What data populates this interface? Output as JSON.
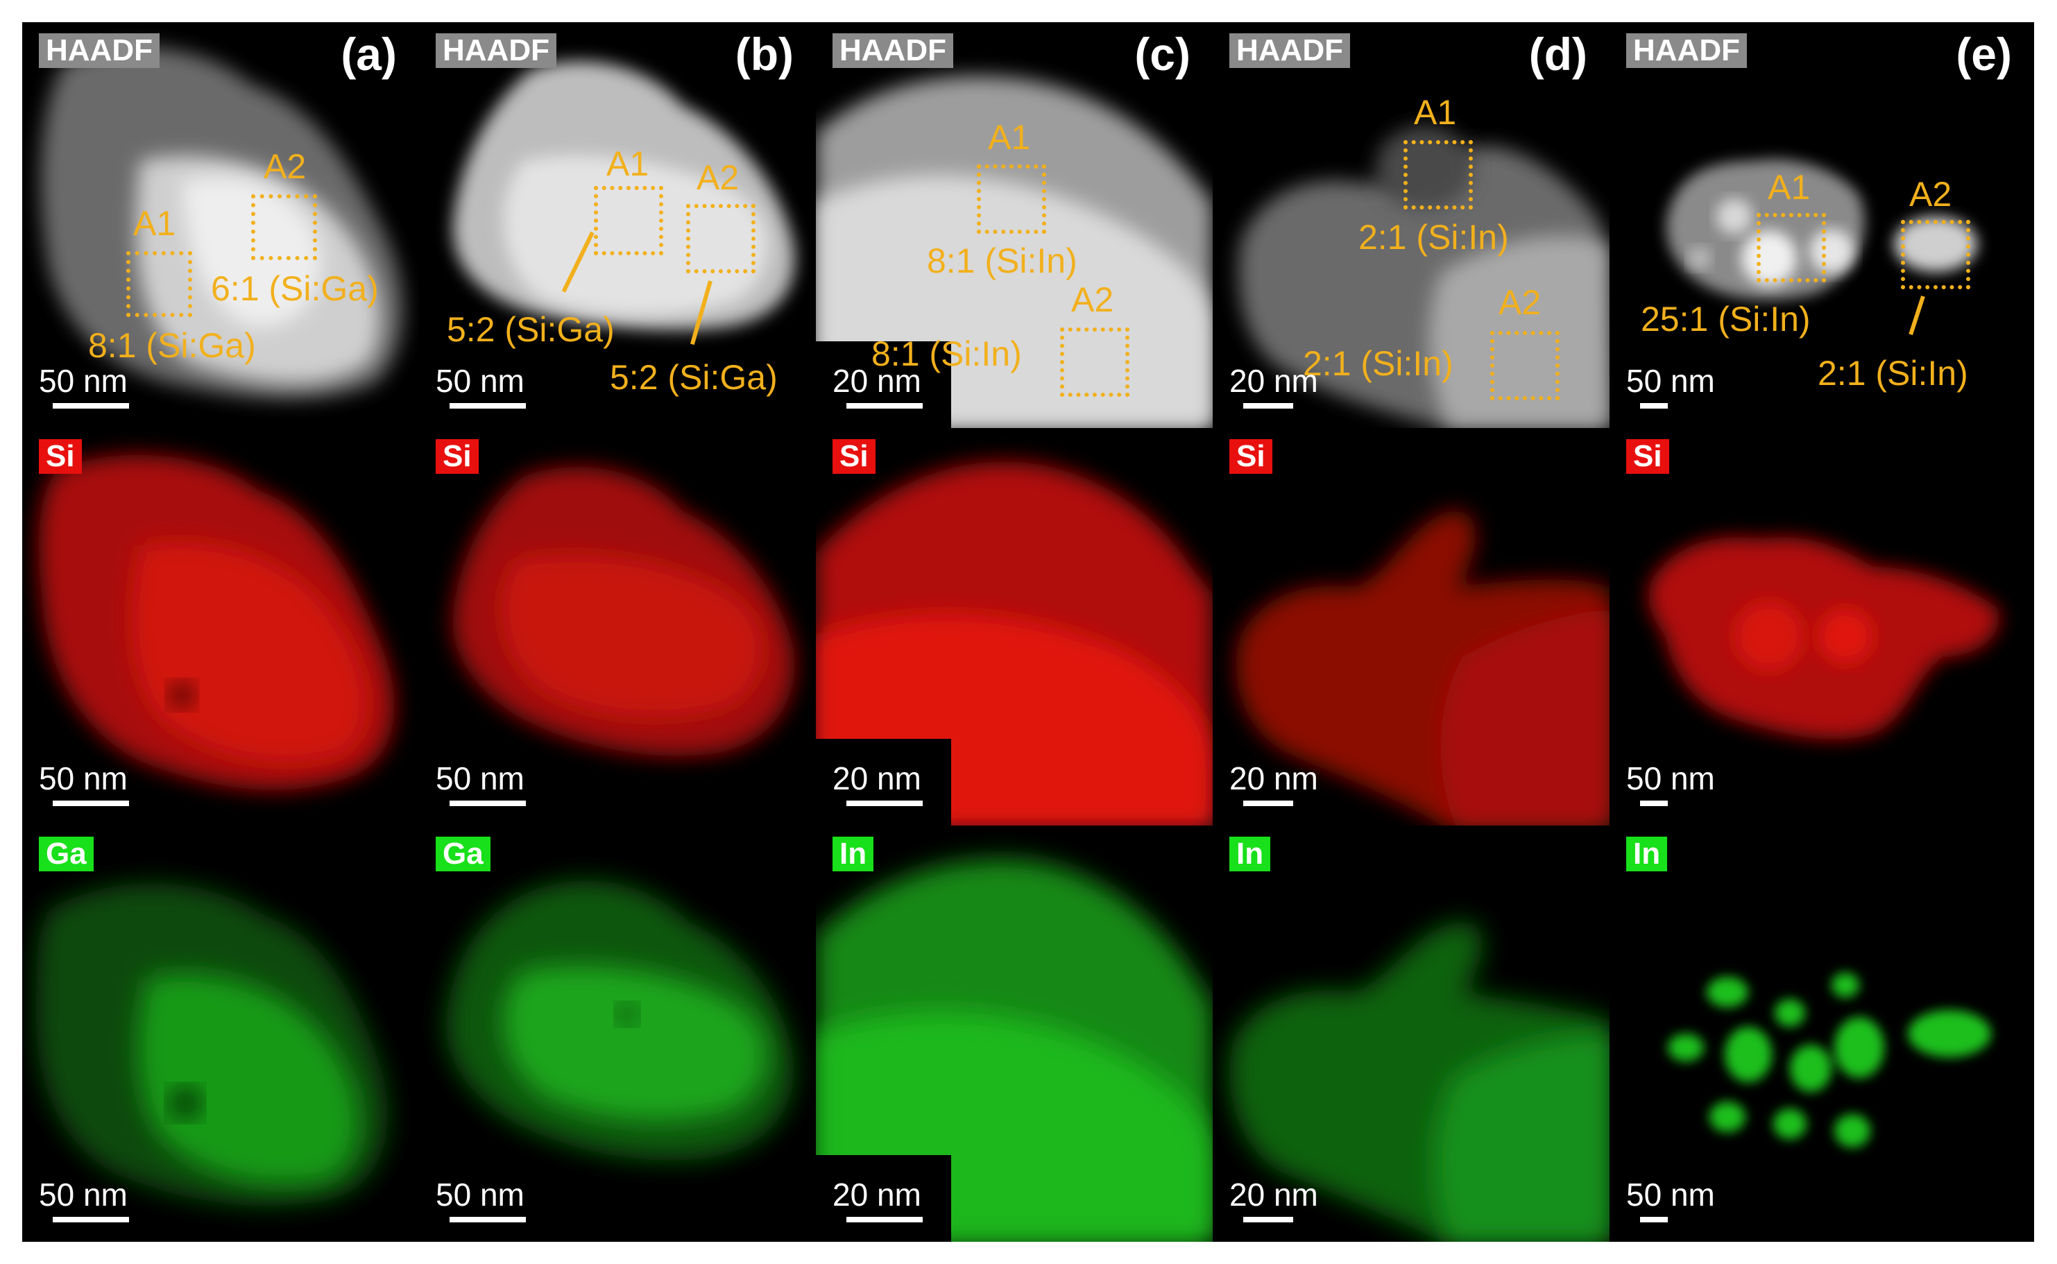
{
  "panels": [
    {
      "letter": "(a)",
      "haadf": {
        "tag": "HAADF",
        "scale": "50 nm",
        "regions": [
          {
            "id": "A1",
            "ratio": "8:1 (Si:Ga)"
          },
          {
            "id": "A2",
            "ratio": "6:1 (Si:Ga)"
          }
        ]
      },
      "map1": {
        "tag": "Si",
        "scale": "50 nm"
      },
      "map2": {
        "tag": "Ga",
        "scale": "50 nm"
      }
    },
    {
      "letter": "(b)",
      "haadf": {
        "tag": "HAADF",
        "scale": "50 nm",
        "regions": [
          {
            "id": "A1",
            "ratio": "5:2 (Si:Ga)"
          },
          {
            "id": "A2",
            "ratio": "5:2 (Si:Ga)"
          }
        ]
      },
      "map1": {
        "tag": "Si",
        "scale": "50 nm"
      },
      "map2": {
        "tag": "Ga",
        "scale": "50 nm"
      }
    },
    {
      "letter": "(c)",
      "haadf": {
        "tag": "HAADF",
        "scale": "20 nm",
        "regions": [
          {
            "id": "A1",
            "ratio": "8:1 (Si:In)"
          },
          {
            "id": "A2",
            "ratio": "8:1 (Si:In)"
          }
        ]
      },
      "map1": {
        "tag": "Si",
        "scale": "20 nm"
      },
      "map2": {
        "tag": "In",
        "scale": "20 nm"
      }
    },
    {
      "letter": "(d)",
      "haadf": {
        "tag": "HAADF",
        "scale": "20 nm",
        "regions": [
          {
            "id": "A1",
            "ratio": "2:1 (Si:In)"
          },
          {
            "id": "A2",
            "ratio": "2:1 (Si:In)"
          }
        ]
      },
      "map1": {
        "tag": "Si",
        "scale": "20 nm"
      },
      "map2": {
        "tag": "In",
        "scale": "20 nm"
      }
    },
    {
      "letter": "(e)",
      "haadf": {
        "tag": "HAADF",
        "scale": "50 nm",
        "regions": [
          {
            "id": "A1",
            "ratio": "25:1 (Si:In)"
          },
          {
            "id": "A2",
            "ratio": "2:1 (Si:In)"
          }
        ]
      },
      "map1": {
        "tag": "Si",
        "scale": "50 nm"
      },
      "map2": {
        "tag": "In",
        "scale": "50 nm"
      }
    }
  ],
  "colors": {
    "haadf": "#ffffff",
    "si_map": "#ff1a10",
    "ga_in_map": "#22e022",
    "annotation": "#f2b01c"
  }
}
